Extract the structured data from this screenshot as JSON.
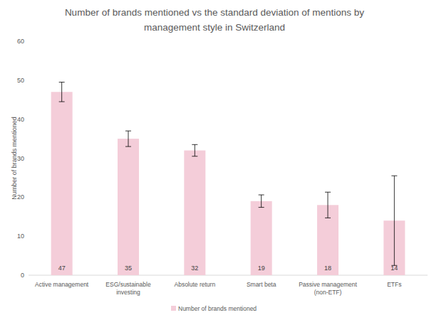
{
  "chart_data": {
    "type": "bar",
    "title": "Number of brands mentioned vs the standard deviation of mentions by management style in Switzerland",
    "y_label": "Number of brands mentioned",
    "categories": [
      "Active management",
      "ESG/sustainable investing",
      "Absolute return",
      "Smart beta",
      "Passive management (non-ETF)",
      "ETFs"
    ],
    "series": [
      {
        "name": "Number of brands mentioned",
        "color": "#f4cdd9",
        "values": [
          47,
          35,
          32,
          19,
          18,
          14
        ]
      }
    ],
    "error": [
      2.5,
      2,
      1.5,
      1.6,
      3.3,
      11.5
    ],
    "ylim": [
      0,
      60
    ],
    "yticks": [
      0,
      10,
      20,
      30,
      40,
      50,
      60
    ],
    "grid": false,
    "legend": "bottom",
    "data_labels": true
  }
}
